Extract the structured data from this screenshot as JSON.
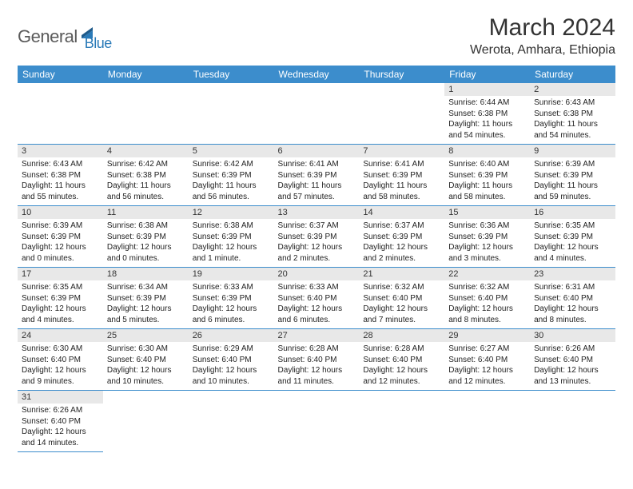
{
  "logo": {
    "part1": "General",
    "part2": "Blue"
  },
  "title": "March 2024",
  "location": "Werota, Amhara, Ethiopia",
  "colors": {
    "header_bg": "#3c8dcc",
    "header_fg": "#ffffff",
    "daynum_bg": "#e8e8e8",
    "border": "#3c8dcc",
    "logo_gray": "#5a5a5a",
    "logo_blue": "#2a7ab8",
    "text": "#222222",
    "background": "#ffffff"
  },
  "typography": {
    "title_fontsize": 30,
    "location_fontsize": 16,
    "header_fontsize": 12,
    "daynum_fontsize": 11,
    "body_fontsize": 10
  },
  "weekdays": [
    "Sunday",
    "Monday",
    "Tuesday",
    "Wednesday",
    "Thursday",
    "Friday",
    "Saturday"
  ],
  "weeks": [
    [
      null,
      null,
      null,
      null,
      null,
      {
        "n": "1",
        "sr": "Sunrise: 6:44 AM",
        "ss": "Sunset: 6:38 PM",
        "dl": "Daylight: 11 hours and 54 minutes."
      },
      {
        "n": "2",
        "sr": "Sunrise: 6:43 AM",
        "ss": "Sunset: 6:38 PM",
        "dl": "Daylight: 11 hours and 54 minutes."
      }
    ],
    [
      {
        "n": "3",
        "sr": "Sunrise: 6:43 AM",
        "ss": "Sunset: 6:38 PM",
        "dl": "Daylight: 11 hours and 55 minutes."
      },
      {
        "n": "4",
        "sr": "Sunrise: 6:42 AM",
        "ss": "Sunset: 6:38 PM",
        "dl": "Daylight: 11 hours and 56 minutes."
      },
      {
        "n": "5",
        "sr": "Sunrise: 6:42 AM",
        "ss": "Sunset: 6:39 PM",
        "dl": "Daylight: 11 hours and 56 minutes."
      },
      {
        "n": "6",
        "sr": "Sunrise: 6:41 AM",
        "ss": "Sunset: 6:39 PM",
        "dl": "Daylight: 11 hours and 57 minutes."
      },
      {
        "n": "7",
        "sr": "Sunrise: 6:41 AM",
        "ss": "Sunset: 6:39 PM",
        "dl": "Daylight: 11 hours and 58 minutes."
      },
      {
        "n": "8",
        "sr": "Sunrise: 6:40 AM",
        "ss": "Sunset: 6:39 PM",
        "dl": "Daylight: 11 hours and 58 minutes."
      },
      {
        "n": "9",
        "sr": "Sunrise: 6:39 AM",
        "ss": "Sunset: 6:39 PM",
        "dl": "Daylight: 11 hours and 59 minutes."
      }
    ],
    [
      {
        "n": "10",
        "sr": "Sunrise: 6:39 AM",
        "ss": "Sunset: 6:39 PM",
        "dl": "Daylight: 12 hours and 0 minutes."
      },
      {
        "n": "11",
        "sr": "Sunrise: 6:38 AM",
        "ss": "Sunset: 6:39 PM",
        "dl": "Daylight: 12 hours and 0 minutes."
      },
      {
        "n": "12",
        "sr": "Sunrise: 6:38 AM",
        "ss": "Sunset: 6:39 PM",
        "dl": "Daylight: 12 hours and 1 minute."
      },
      {
        "n": "13",
        "sr": "Sunrise: 6:37 AM",
        "ss": "Sunset: 6:39 PM",
        "dl": "Daylight: 12 hours and 2 minutes."
      },
      {
        "n": "14",
        "sr": "Sunrise: 6:37 AM",
        "ss": "Sunset: 6:39 PM",
        "dl": "Daylight: 12 hours and 2 minutes."
      },
      {
        "n": "15",
        "sr": "Sunrise: 6:36 AM",
        "ss": "Sunset: 6:39 PM",
        "dl": "Daylight: 12 hours and 3 minutes."
      },
      {
        "n": "16",
        "sr": "Sunrise: 6:35 AM",
        "ss": "Sunset: 6:39 PM",
        "dl": "Daylight: 12 hours and 4 minutes."
      }
    ],
    [
      {
        "n": "17",
        "sr": "Sunrise: 6:35 AM",
        "ss": "Sunset: 6:39 PM",
        "dl": "Daylight: 12 hours and 4 minutes."
      },
      {
        "n": "18",
        "sr": "Sunrise: 6:34 AM",
        "ss": "Sunset: 6:39 PM",
        "dl": "Daylight: 12 hours and 5 minutes."
      },
      {
        "n": "19",
        "sr": "Sunrise: 6:33 AM",
        "ss": "Sunset: 6:39 PM",
        "dl": "Daylight: 12 hours and 6 minutes."
      },
      {
        "n": "20",
        "sr": "Sunrise: 6:33 AM",
        "ss": "Sunset: 6:40 PM",
        "dl": "Daylight: 12 hours and 6 minutes."
      },
      {
        "n": "21",
        "sr": "Sunrise: 6:32 AM",
        "ss": "Sunset: 6:40 PM",
        "dl": "Daylight: 12 hours and 7 minutes."
      },
      {
        "n": "22",
        "sr": "Sunrise: 6:32 AM",
        "ss": "Sunset: 6:40 PM",
        "dl": "Daylight: 12 hours and 8 minutes."
      },
      {
        "n": "23",
        "sr": "Sunrise: 6:31 AM",
        "ss": "Sunset: 6:40 PM",
        "dl": "Daylight: 12 hours and 8 minutes."
      }
    ],
    [
      {
        "n": "24",
        "sr": "Sunrise: 6:30 AM",
        "ss": "Sunset: 6:40 PM",
        "dl": "Daylight: 12 hours and 9 minutes."
      },
      {
        "n": "25",
        "sr": "Sunrise: 6:30 AM",
        "ss": "Sunset: 6:40 PM",
        "dl": "Daylight: 12 hours and 10 minutes."
      },
      {
        "n": "26",
        "sr": "Sunrise: 6:29 AM",
        "ss": "Sunset: 6:40 PM",
        "dl": "Daylight: 12 hours and 10 minutes."
      },
      {
        "n": "27",
        "sr": "Sunrise: 6:28 AM",
        "ss": "Sunset: 6:40 PM",
        "dl": "Daylight: 12 hours and 11 minutes."
      },
      {
        "n": "28",
        "sr": "Sunrise: 6:28 AM",
        "ss": "Sunset: 6:40 PM",
        "dl": "Daylight: 12 hours and 12 minutes."
      },
      {
        "n": "29",
        "sr": "Sunrise: 6:27 AM",
        "ss": "Sunset: 6:40 PM",
        "dl": "Daylight: 12 hours and 12 minutes."
      },
      {
        "n": "30",
        "sr": "Sunrise: 6:26 AM",
        "ss": "Sunset: 6:40 PM",
        "dl": "Daylight: 12 hours and 13 minutes."
      }
    ],
    [
      {
        "n": "31",
        "sr": "Sunrise: 6:26 AM",
        "ss": "Sunset: 6:40 PM",
        "dl": "Daylight: 12 hours and 14 minutes."
      },
      null,
      null,
      null,
      null,
      null,
      null
    ]
  ]
}
